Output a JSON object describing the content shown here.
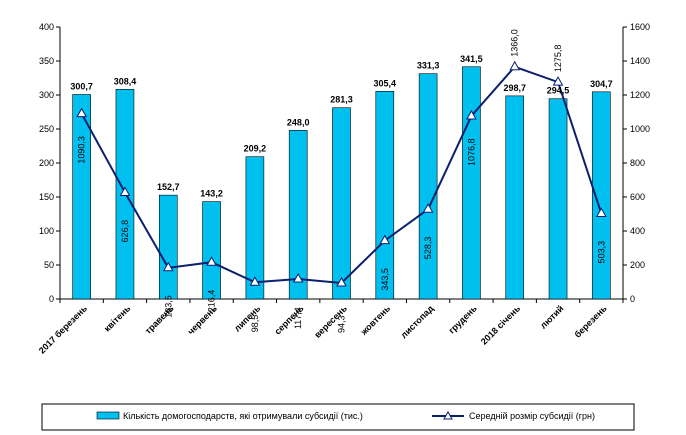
{
  "chart_data": {
    "type": "bar+line",
    "categories": [
      "2017 березень",
      "квітень",
      "травень",
      "червень",
      "липень",
      "серпень",
      "вересень",
      "жовтень",
      "листопад",
      "грудень",
      "2018 січень",
      "лютий",
      "березень"
    ],
    "series": [
      {
        "name": "Кількість домогосподарств, які отримували субсидії (тис.)",
        "type": "bar",
        "axis": "left",
        "color": "#00c0f0",
        "values": [
          300.7,
          308.4,
          152.7,
          143.2,
          209.2,
          248.0,
          281.3,
          305.4,
          331.3,
          341.5,
          298.7,
          294.5,
          304.7
        ],
        "labels": [
          "300,7",
          "308,4",
          "152,7",
          "143,2",
          "209,2",
          "248,0",
          "281,3",
          "305,4",
          "331,3",
          "341,5",
          "298,7",
          "294,5",
          "304,7"
        ]
      },
      {
        "name": "Середній розмір субсидії (грн)",
        "type": "line",
        "axis": "right",
        "color": "#0a1f6e",
        "marker": "triangle",
        "values": [
          1090.3,
          626.8,
          183.5,
          216.4,
          98.5,
          117.4,
          94.3,
          343.5,
          528.3,
          1076.8,
          1366.0,
          1275.8,
          503.3
        ],
        "labels": [
          "1090,3",
          "626,8",
          "183,5",
          "216,4",
          "98,5",
          "117,4",
          "94,3",
          "343,5",
          "528,3",
          "1076,8",
          "1366,0",
          "1275,8",
          "503,3"
        ]
      }
    ],
    "y_left": {
      "range": [
        0,
        400
      ],
      "ticks": [
        0,
        50,
        100,
        150,
        200,
        250,
        300,
        350,
        400
      ]
    },
    "y_right": {
      "range": [
        0,
        1600
      ],
      "ticks": [
        0,
        200,
        400,
        600,
        800,
        1000,
        1200,
        1400,
        1600
      ]
    },
    "grid": false,
    "legend": "bottom"
  }
}
